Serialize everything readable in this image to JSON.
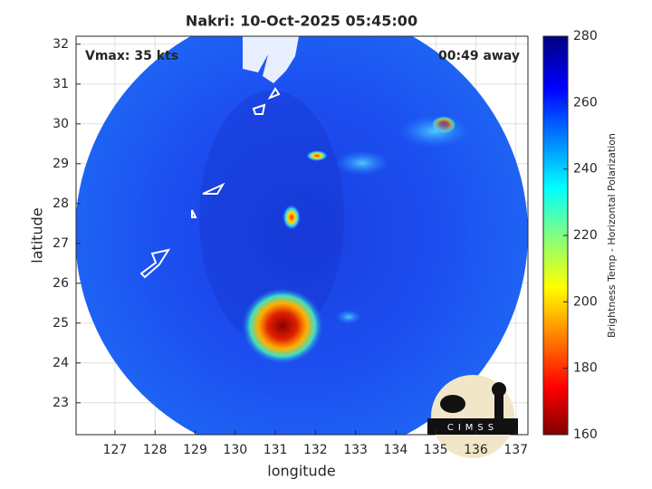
{
  "chart_data": {
    "type": "map",
    "title": "Nakri: 10-Oct-2025 05:45:00",
    "annotations": [
      "Vmax: 35 kts",
      "00:49 away"
    ],
    "xlabel": "longitude",
    "ylabel": "latitude",
    "xlim": [
      126.03,
      137.3
    ],
    "xticks": [
      127,
      128,
      129,
      130,
      131,
      132,
      133,
      134,
      135,
      136,
      137
    ],
    "ylim": [
      22.2,
      32.2
    ],
    "yticks": [
      23,
      24,
      25,
      26,
      27,
      28,
      29,
      30,
      31,
      32
    ],
    "grid": true,
    "colorbar": {
      "label": "Brightness Temp - Horizontal Polarization",
      "lim": [
        160,
        280
      ],
      "ticks": [
        160,
        180,
        200,
        220,
        240,
        260,
        280
      ]
    },
    "logo": "CIMSS"
  }
}
